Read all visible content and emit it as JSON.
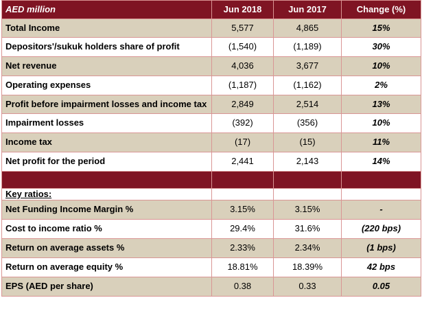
{
  "table": {
    "header": {
      "label": "AED million",
      "columns": [
        "Jun 2018",
        "Jun 2017",
        "Change (%)"
      ]
    },
    "income_rows": [
      {
        "label": "Total Income",
        "jun2018": "5,577",
        "jun2017": "4,865",
        "change": "15%"
      },
      {
        "label": "Depositors'/sukuk holders share of profit",
        "jun2018": "(1,540)",
        "jun2017": "(1,189)",
        "change": "30%"
      },
      {
        "label": "Net revenue",
        "jun2018": "4,036",
        "jun2017": "3,677",
        "change": "10%"
      },
      {
        "label": "Operating expenses",
        "jun2018": "(1,187)",
        "jun2017": "(1,162)",
        "change": "2%"
      },
      {
        "label": "Profit before impairment losses and income tax",
        "jun2018": "2,849",
        "jun2017": "2,514",
        "change": "13%"
      },
      {
        "label": "Impairment losses",
        "jun2018": "(392)",
        "jun2017": "(356)",
        "change": "10%"
      },
      {
        "label": "Income tax",
        "jun2018": "(17)",
        "jun2017": "(15)",
        "change": "11%"
      },
      {
        "label": "Net profit for the period",
        "jun2018": "2,441",
        "jun2017": "2,143",
        "change": "14%"
      }
    ],
    "key_ratios_label": "Key ratios:",
    "ratio_rows": [
      {
        "label": "Net Funding Income Margin %",
        "jun2018": "3.15%",
        "jun2017": "3.15%",
        "change": "-"
      },
      {
        "label": "Cost to income ratio %",
        "jun2018": "29.4%",
        "jun2017": "31.6%",
        "change": "(220 bps)"
      },
      {
        "label": "Return on average assets %",
        "jun2018": "2.33%",
        "jun2017": "2.34%",
        "change": "(1 bps)"
      },
      {
        "label": "Return on average equity %",
        "jun2018": "18.81%",
        "jun2017": "18.39%",
        "change": "42 bps"
      },
      {
        "label": "EPS (AED per share)",
        "jun2018": "0.38",
        "jun2017": "0.33",
        "change": "0.05"
      }
    ]
  },
  "colors": {
    "header_bg": "#7f1423",
    "shaded_row_bg": "#d9d0bb",
    "border": "#d99594"
  }
}
